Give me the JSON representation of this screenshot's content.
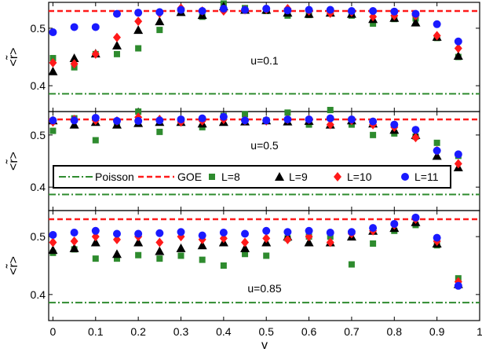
{
  "colors": {
    "poisson": "#2e8b2e",
    "goe": "#ff1a1a",
    "L8": "#2e8b2e",
    "L9": "#000000",
    "L10": "#ff1a1a",
    "L11": "#1a1aff"
  },
  "chart_data": {
    "type": "scatter",
    "xlabel": "v",
    "ylabel": "<r̃>",
    "xlim": [
      -0.01,
      1.0
    ],
    "ylim": [
      0.355,
      0.545
    ],
    "x_ticks": [
      0,
      0.1,
      0.2,
      0.3,
      0.4,
      0.5,
      0.6,
      0.7,
      0.8,
      0.9,
      1
    ],
    "x_tick_labels": [
      "0",
      "0.1",
      "0.2",
      "0.3",
      "0.4",
      "0.5",
      "0.6",
      "0.7",
      "0.8",
      "0.9",
      "1"
    ],
    "y_ticks": [
      0.4,
      0.5
    ],
    "y_tick_labels": [
      "0.4",
      "0.5"
    ],
    "reference_lines": {
      "poisson": 0.386,
      "goe": 0.53
    },
    "legend": {
      "placement": "middle panel, lower-left",
      "entries": [
        "Poisson",
        "GOE",
        "L=8",
        "L=9",
        "L=10",
        "L=11"
      ]
    },
    "panels": [
      {
        "annotation": "u=0.1",
        "x": [
          0,
          0.05,
          0.1,
          0.15,
          0.2,
          0.25,
          0.3,
          0.35,
          0.4,
          0.45,
          0.5,
          0.55,
          0.6,
          0.65,
          0.7,
          0.75,
          0.8,
          0.85,
          0.9,
          0.95
        ],
        "series": [
          {
            "name": "L=8",
            "values": [
              0.448,
              0.432,
              0.455,
              0.455,
              0.465,
              0.497,
              0.53,
              0.52,
              0.543,
              0.535,
              0.53,
              0.522,
              0.523,
              0.528,
              0.522,
              0.508,
              0.516,
              0.517,
              0.483,
              0.45
            ]
          },
          {
            "name": "L=9",
            "values": [
              0.425,
              0.448,
              0.456,
              0.47,
              0.497,
              0.512,
              0.528,
              0.523,
              0.538,
              0.532,
              0.532,
              0.527,
              0.525,
              0.527,
              0.525,
              0.516,
              0.518,
              0.51,
              0.485,
              0.452
            ]
          },
          {
            "name": "L=10",
            "values": [
              0.44,
              0.438,
              0.455,
              0.484,
              0.512,
              0.526,
              0.535,
              0.53,
              0.53,
              0.532,
              0.533,
              0.534,
              0.53,
              0.526,
              0.528,
              0.52,
              0.522,
              0.522,
              0.487,
              0.465
            ]
          },
          {
            "name": "L=11",
            "values": [
              0.493,
              0.502,
              0.502,
              0.525,
              0.527,
              0.528,
              0.532,
              0.53,
              0.534,
              0.532,
              0.534,
              0.531,
              0.532,
              0.532,
              0.53,
              0.53,
              0.529,
              0.525,
              0.507,
              0.477
            ]
          }
        ]
      },
      {
        "annotation": "u=0.5",
        "x": [
          0,
          0.05,
          0.1,
          0.15,
          0.2,
          0.25,
          0.3,
          0.35,
          0.4,
          0.45,
          0.5,
          0.55,
          0.6,
          0.65,
          0.7,
          0.75,
          0.8,
          0.85,
          0.9,
          0.95
        ],
        "series": [
          {
            "name": "L=8",
            "values": [
              0.508,
              0.532,
              0.49,
              0.524,
              0.545,
              0.506,
              0.524,
              0.515,
              0.537,
              0.54,
              0.528,
              0.543,
              0.52,
              0.548,
              0.52,
              0.5,
              0.503,
              0.497,
              0.485,
              0.46
            ]
          },
          {
            "name": "L=9",
            "values": [
              0.528,
              0.52,
              0.525,
              0.52,
              0.523,
              0.525,
              0.525,
              0.522,
              0.525,
              0.526,
              0.528,
              0.526,
              0.527,
              0.52,
              0.528,
              0.522,
              0.51,
              0.5,
              0.46,
              0.438
            ]
          },
          {
            "name": "L=10",
            "values": [
              0.525,
              0.53,
              0.528,
              0.527,
              0.534,
              0.53,
              0.525,
              0.527,
              0.53,
              0.528,
              0.527,
              0.53,
              0.53,
              0.52,
              0.528,
              0.52,
              0.515,
              0.495,
              0.47,
              0.445
            ]
          },
          {
            "name": "L=11",
            "values": [
              0.528,
              0.528,
              0.533,
              0.527,
              0.527,
              0.528,
              0.53,
              0.532,
              0.535,
              0.528,
              0.528,
              0.53,
              0.53,
              0.532,
              0.53,
              0.526,
              0.52,
              0.51,
              0.47,
              0.463
            ]
          }
        ]
      },
      {
        "annotation": "u=0.85",
        "x": [
          0,
          0.05,
          0.1,
          0.15,
          0.2,
          0.25,
          0.3,
          0.35,
          0.4,
          0.45,
          0.5,
          0.55,
          0.6,
          0.65,
          0.7,
          0.75,
          0.8,
          0.85,
          0.9,
          0.95
        ],
        "series": [
          {
            "name": "L=8",
            "values": [
              0.472,
              0.478,
              0.462,
              0.462,
              0.468,
              0.462,
              0.467,
              0.46,
              0.45,
              0.47,
              0.467,
              0.497,
              0.5,
              0.5,
              0.452,
              0.488,
              0.51,
              0.52,
              0.485,
              0.428
            ]
          },
          {
            "name": "L=9",
            "values": [
              0.477,
              0.48,
              0.49,
              0.47,
              0.49,
              0.475,
              0.48,
              0.485,
              0.49,
              0.48,
              0.49,
              0.5,
              0.49,
              0.49,
              0.5,
              0.51,
              0.515,
              0.525,
              0.488,
              0.418
            ]
          },
          {
            "name": "L=10",
            "values": [
              0.49,
              0.492,
              0.5,
              0.495,
              0.5,
              0.49,
              0.5,
              0.495,
              0.497,
              0.49,
              0.497,
              0.495,
              0.5,
              0.49,
              0.505,
              0.51,
              0.52,
              0.53,
              0.492,
              0.422
            ]
          },
          {
            "name": "L=11",
            "values": [
              0.503,
              0.507,
              0.51,
              0.505,
              0.505,
              0.506,
              0.508,
              0.502,
              0.507,
              0.505,
              0.51,
              0.508,
              0.51,
              0.507,
              0.508,
              0.515,
              0.522,
              0.533,
              0.498,
              0.415
            ]
          }
        ]
      }
    ]
  }
}
